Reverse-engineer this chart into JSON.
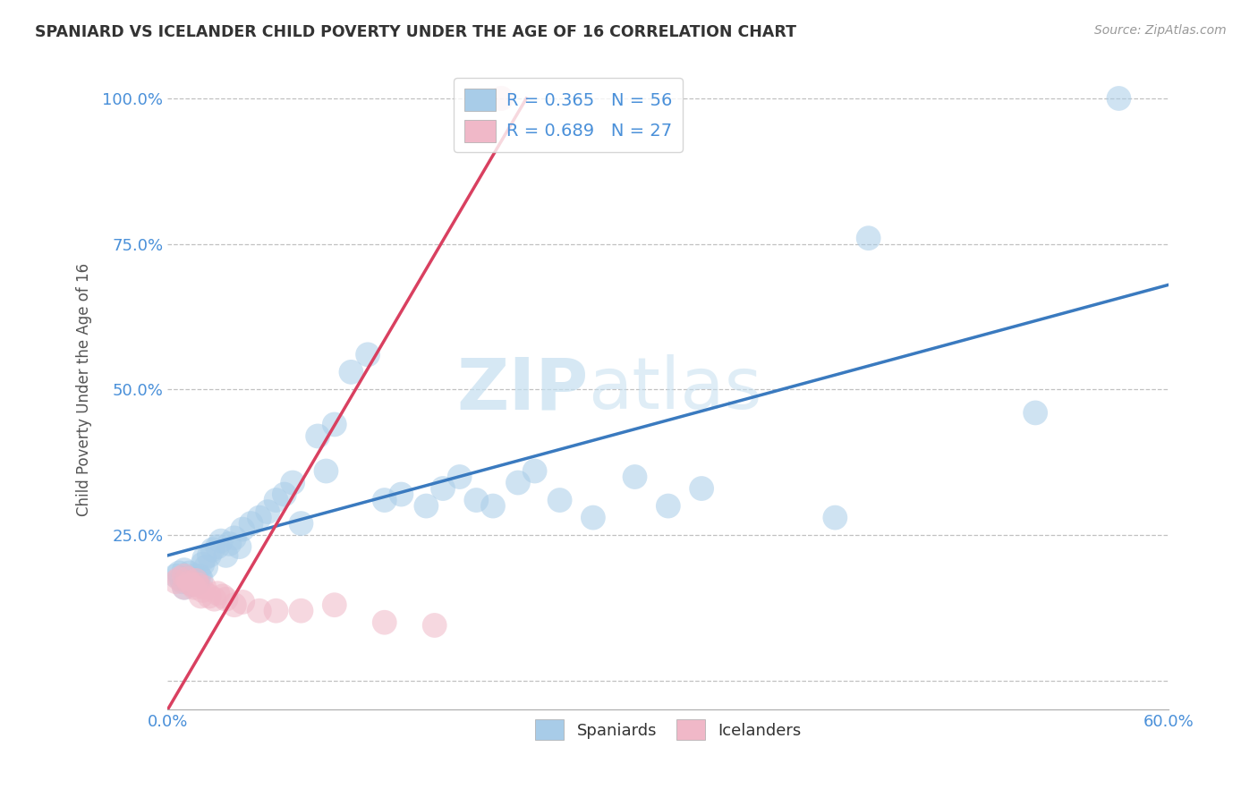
{
  "title": "SPANIARD VS ICELANDER CHILD POVERTY UNDER THE AGE OF 16 CORRELATION CHART",
  "source": "Source: ZipAtlas.com",
  "ylabel": "Child Poverty Under the Age of 16",
  "yticks": [
    0.0,
    0.25,
    0.5,
    0.75,
    1.0
  ],
  "ytick_labels": [
    "",
    "25.0%",
    "50.0%",
    "75.0%",
    "100.0%"
  ],
  "xmin": 0.0,
  "xmax": 0.6,
  "ymin": -0.05,
  "ymax": 1.05,
  "watermark_ZIP": "ZIP",
  "watermark_atlas": "atlas",
  "legend_blue_label": "R = 0.365   N = 56",
  "legend_pink_label": "R = 0.689   N = 27",
  "spaniards_label": "Spaniards",
  "icelanders_label": "Icelanders",
  "blue_color": "#a8cce8",
  "pink_color": "#f0b8c8",
  "blue_line_color": "#3a7abf",
  "pink_line_color": "#d94060",
  "blue_scatter_x": [
    0.005,
    0.007,
    0.008,
    0.009,
    0.01,
    0.01,
    0.012,
    0.013,
    0.015,
    0.016,
    0.017,
    0.018,
    0.019,
    0.02,
    0.021,
    0.022,
    0.023,
    0.025,
    0.027,
    0.03,
    0.032,
    0.035,
    0.037,
    0.04,
    0.043,
    0.045,
    0.05,
    0.055,
    0.06,
    0.065,
    0.07,
    0.075,
    0.08,
    0.09,
    0.095,
    0.1,
    0.11,
    0.12,
    0.13,
    0.14,
    0.155,
    0.165,
    0.175,
    0.185,
    0.195,
    0.21,
    0.22,
    0.235,
    0.255,
    0.28,
    0.3,
    0.32,
    0.4,
    0.42,
    0.52,
    0.57
  ],
  "blue_scatter_y": [
    0.18,
    0.185,
    0.175,
    0.17,
    0.16,
    0.19,
    0.175,
    0.185,
    0.165,
    0.18,
    0.172,
    0.168,
    0.18,
    0.175,
    0.2,
    0.21,
    0.195,
    0.215,
    0.225,
    0.23,
    0.24,
    0.215,
    0.235,
    0.245,
    0.23,
    0.26,
    0.27,
    0.28,
    0.29,
    0.31,
    0.32,
    0.34,
    0.27,
    0.42,
    0.36,
    0.44,
    0.53,
    0.56,
    0.31,
    0.32,
    0.3,
    0.33,
    0.35,
    0.31,
    0.3,
    0.34,
    0.36,
    0.31,
    0.28,
    0.35,
    0.3,
    0.33,
    0.28,
    0.76,
    0.46,
    1.0
  ],
  "pink_scatter_x": [
    0.005,
    0.007,
    0.01,
    0.01,
    0.012,
    0.013,
    0.015,
    0.016,
    0.017,
    0.018,
    0.02,
    0.021,
    0.022,
    0.025,
    0.028,
    0.03,
    0.033,
    0.035,
    0.04,
    0.045,
    0.055,
    0.065,
    0.08,
    0.1,
    0.13,
    0.16,
    0.2
  ],
  "pink_scatter_y": [
    0.17,
    0.175,
    0.16,
    0.18,
    0.175,
    0.168,
    0.165,
    0.16,
    0.172,
    0.165,
    0.145,
    0.155,
    0.16,
    0.145,
    0.14,
    0.15,
    0.145,
    0.14,
    0.13,
    0.135,
    0.12,
    0.12,
    0.12,
    0.13,
    0.1,
    0.095,
    1.0
  ],
  "blue_line_x0": 0.0,
  "blue_line_x1": 0.6,
  "blue_line_y0": 0.215,
  "blue_line_y1": 0.68,
  "pink_line_x0": 0.0,
  "pink_line_x1": 0.215,
  "pink_line_y0": -0.05,
  "pink_line_y1": 1.0
}
